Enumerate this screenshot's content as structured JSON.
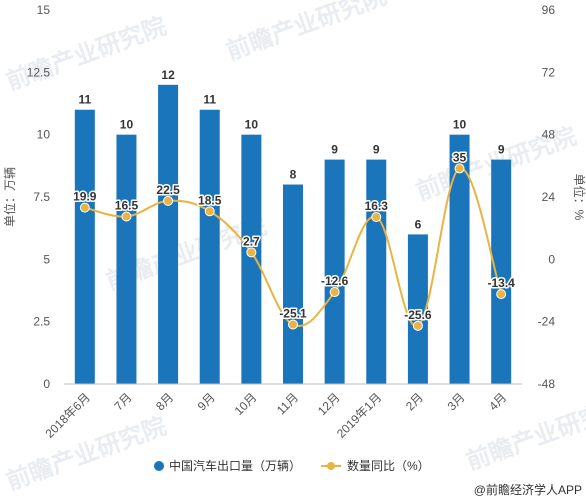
{
  "chart_data": {
    "type": "bar",
    "categories": [
      "2018年6月",
      "7月",
      "8月",
      "9月",
      "10月",
      "11月",
      "12月",
      "2019年1月",
      "2月",
      "3月",
      "4月"
    ],
    "series": [
      {
        "name": "中国汽车出口量（万辆）",
        "type": "bar",
        "axis": "left",
        "values": [
          11,
          10,
          12,
          11,
          10,
          8,
          9,
          9,
          6,
          10,
          9
        ],
        "labels": [
          "11",
          "10",
          "12",
          "11",
          "10",
          "8",
          "9",
          "9",
          "6",
          "10",
          "9"
        ],
        "color": "#1b75bb"
      },
      {
        "name": "数量同比（%）",
        "type": "line",
        "axis": "right",
        "values": [
          19.9,
          16.5,
          22.5,
          18.5,
          2.7,
          -25.1,
          -12.6,
          16.3,
          -25.6,
          35,
          -13.4
        ],
        "labels": [
          "19.9",
          "16.5",
          "22.5",
          "18.5",
          "2.7",
          "-25.1",
          "-12.6",
          "16.3",
          "-25.6",
          "35",
          "-13.4"
        ],
        "color": "#e9b443"
      }
    ],
    "ylabel": "单位：万辆",
    "y2label": "单位：%",
    "ylim": [
      0,
      15
    ],
    "y2lim": [
      -48,
      96
    ],
    "yticks": [
      "0",
      "2.5",
      "5",
      "7.5",
      "10",
      "12.5",
      "15"
    ],
    "y2ticks": [
      "-48",
      "-24",
      "0",
      "24",
      "48",
      "72",
      "96"
    ],
    "grid": false,
    "legend_position": "bottom"
  },
  "watermark": "前瞻产业研究院",
  "source": "@前瞻经济学人APP"
}
